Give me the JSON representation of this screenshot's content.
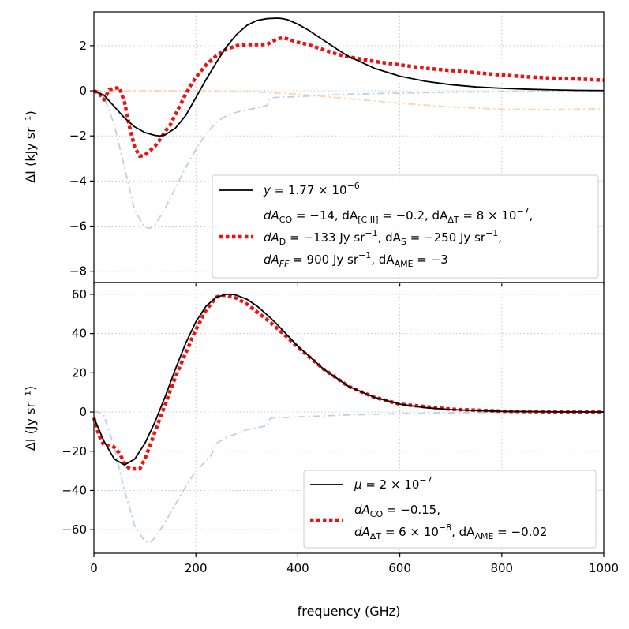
{
  "chart_data": [
    {
      "type": "line",
      "panel": "top",
      "xlabel": "",
      "ylabel": "ΔI (kJy sr⁻¹)",
      "xlim": [
        0,
        1000
      ],
      "ylim": [
        -8.5,
        3.5
      ],
      "yticks": [
        2,
        0,
        -2,
        -4,
        -6,
        -8
      ],
      "ytick_labels": [
        "2",
        "0",
        "−2",
        "−4",
        "−6",
        "−8"
      ],
      "grid": true,
      "legend_position": "lower-right",
      "series": [
        {
          "name": "y = 1.77 × 10⁻⁶",
          "style": "solid",
          "color": "#000000",
          "x": [
            0,
            20,
            40,
            60,
            80,
            100,
            120,
            130,
            140,
            160,
            180,
            200,
            220,
            240,
            260,
            280,
            300,
            320,
            340,
            360,
            370,
            380,
            400,
            420,
            440,
            460,
            480,
            500,
            550,
            600,
            650,
            700,
            750,
            800,
            850,
            900,
            950,
            1000
          ],
          "y": [
            0,
            -0.2,
            -0.7,
            -1.2,
            -1.6,
            -1.85,
            -1.98,
            -2.0,
            -1.95,
            -1.65,
            -1.1,
            -0.3,
            0.5,
            1.25,
            1.95,
            2.5,
            2.9,
            3.12,
            3.2,
            3.22,
            3.2,
            3.15,
            2.95,
            2.7,
            2.4,
            2.1,
            1.8,
            1.52,
            1.0,
            0.65,
            0.42,
            0.27,
            0.17,
            0.11,
            0.07,
            0.04,
            0.02,
            0.01
          ]
        },
        {
          "name": "dA_CO = −14, dA_[C II] = −0.2, dA_ΔT = 8 × 10⁻⁷, dA_D = −133 Jy sr⁻¹, dA_S = −250 Jy sr⁻¹, dA_FF = 900 Jy sr⁻¹, dA_AME = −3",
          "style": "dotted",
          "color": "#ee1111",
          "x": [
            0,
            10,
            20,
            30,
            40,
            50,
            60,
            70,
            80,
            90,
            100,
            110,
            120,
            130,
            140,
            150,
            160,
            170,
            180,
            190,
            200,
            220,
            240,
            260,
            280,
            300,
            320,
            340,
            350,
            360,
            370,
            380,
            400,
            420,
            440,
            460,
            480,
            500,
            550,
            600,
            650,
            700,
            750,
            800,
            850,
            900,
            950,
            1000
          ],
          "y": [
            0,
            -0.1,
            -0.4,
            0.05,
            0.1,
            0.15,
            -0.5,
            -1.6,
            -2.5,
            -2.9,
            -2.85,
            -2.65,
            -2.45,
            -2.15,
            -1.8,
            -1.5,
            -1.05,
            -0.6,
            -0.15,
            0.25,
            0.6,
            1.15,
            1.55,
            1.85,
            2.0,
            2.05,
            2.05,
            2.05,
            2.2,
            2.3,
            2.35,
            2.3,
            2.15,
            2.05,
            1.9,
            1.75,
            1.6,
            1.5,
            1.3,
            1.15,
            1.0,
            0.9,
            0.8,
            0.7,
            0.62,
            0.56,
            0.52,
            0.47
          ]
        },
        {
          "name": "",
          "style": "dashdot",
          "color": "#b8d2e6",
          "x": [
            0,
            20,
            40,
            60,
            80,
            100,
            110,
            120,
            140,
            160,
            180,
            200,
            220,
            240,
            260,
            280,
            300,
            320,
            340,
            345,
            350,
            400,
            450,
            500,
            600,
            700,
            800,
            900,
            1000
          ],
          "y": [
            0,
            -0.3,
            -1.5,
            -3.4,
            -5.3,
            -6.05,
            -6.1,
            -5.95,
            -5.2,
            -4.3,
            -3.4,
            -2.6,
            -1.9,
            -1.4,
            -1.1,
            -0.95,
            -0.85,
            -0.75,
            -0.65,
            -0.35,
            -0.3,
            -0.26,
            -0.2,
            -0.15,
            -0.1,
            -0.06,
            -0.04,
            -0.02,
            -0.01
          ]
        },
        {
          "name": "",
          "style": "dashdot",
          "color": "#fcd5b0",
          "x": [
            0,
            100,
            200,
            300,
            400,
            500,
            600,
            700,
            800,
            900,
            1000
          ],
          "y": [
            0,
            0,
            0,
            -0.03,
            -0.15,
            -0.35,
            -0.55,
            -0.72,
            -0.82,
            -0.83,
            -0.8
          ]
        }
      ]
    },
    {
      "type": "line",
      "panel": "bottom",
      "xlabel": "frequency (GHz)",
      "ylabel": "ΔI (Jy sr⁻¹)",
      "xlim": [
        0,
        1000
      ],
      "ylim": [
        -72,
        66
      ],
      "xticks": [
        0,
        200,
        400,
        600,
        800,
        1000
      ],
      "xtick_labels": [
        "0",
        "200",
        "400",
        "600",
        "800",
        "1000"
      ],
      "yticks": [
        60,
        40,
        20,
        0,
        -20,
        -40,
        -60
      ],
      "ytick_labels": [
        "60",
        "40",
        "20",
        "0",
        "−20",
        "−40",
        "−60"
      ],
      "grid": true,
      "legend_position": "lower-right",
      "series": [
        {
          "name": "μ = 2 × 10⁻⁷",
          "style": "solid",
          "color": "#000000",
          "x": [
            0,
            20,
            40,
            60,
            80,
            100,
            120,
            140,
            160,
            180,
            200,
            220,
            240,
            260,
            270,
            280,
            300,
            320,
            340,
            360,
            380,
            400,
            450,
            500,
            550,
            600,
            650,
            700,
            800,
            900,
            1000
          ],
          "y": [
            -3,
            -15,
            -24,
            -27,
            -24,
            -16,
            -5,
            8,
            22,
            35,
            46,
            54,
            58.5,
            60,
            60,
            59.5,
            57.5,
            54,
            49.5,
            44.5,
            39,
            33.5,
            22,
            13,
            7.5,
            4,
            2.2,
            1.2,
            0.3,
            0.1,
            0
          ]
        },
        {
          "name": "dA_CO = −0.15, dA_ΔT = 6 × 10⁻⁸, dA_AME = −0.02",
          "style": "dotted",
          "color": "#ee1111",
          "x": [
            0,
            10,
            20,
            30,
            40,
            50,
            60,
            70,
            80,
            90,
            100,
            110,
            120,
            130,
            140,
            160,
            180,
            200,
            220,
            240,
            250,
            260,
            280,
            300,
            320,
            340,
            360,
            380,
            400,
            450,
            500,
            550,
            600,
            700,
            800,
            900,
            1000
          ],
          "y": [
            -3,
            -12,
            -17,
            -17,
            -18,
            -21,
            -26,
            -29,
            -29,
            -29,
            -24,
            -17,
            -10,
            -3,
            4,
            18,
            30,
            42,
            52,
            58.5,
            59.5,
            59.5,
            58,
            55,
            51,
            47,
            42.5,
            38,
            33,
            22,
            13,
            7.5,
            4,
            1.4,
            0.4,
            0.1,
            0
          ]
        },
        {
          "name": "",
          "style": "dashdot",
          "color": "#b8d2e6",
          "x": [
            0,
            10,
            20,
            40,
            60,
            80,
            100,
            110,
            120,
            140,
            160,
            180,
            200,
            220,
            230,
            240,
            260,
            280,
            300,
            320,
            340,
            345,
            350,
            400,
            450,
            500,
            600,
            700,
            800,
            900,
            1000
          ],
          "y": [
            0,
            0,
            -2,
            -18,
            -40,
            -58,
            -66,
            -66.5,
            -64,
            -56,
            -47,
            -38,
            -30,
            -25,
            -22,
            -16,
            -13,
            -11,
            -9,
            -8,
            -7,
            -3.5,
            -3,
            -2.5,
            -2,
            -1.5,
            -0.8,
            -0.4,
            -0.2,
            -0.1,
            0
          ]
        }
      ]
    }
  ],
  "legends": {
    "top": {
      "entry1": {
        "prefix": "y",
        "suffix": " = 1.77 × 10",
        "exp": "−6"
      },
      "entry2": {
        "line1": {
          "t1": "dA",
          "s1": "CO",
          "t2": " = −14, dA",
          "s2": "[C II]",
          "t3": " = −0.2, dA",
          "s3": "ΔT",
          "t4": " = 8 × 10",
          "e4": "−7",
          "t5": ","
        },
        "line2": {
          "t1": "dA",
          "s1": "D",
          "t2": " = −133 Jy sr",
          "e2": "−1",
          "t3": ", dA",
          "s3": "S",
          "t4": " = −250 Jy sr",
          "e4": "−1",
          "t5": ","
        },
        "line3": {
          "t1": "dA",
          "s1": "FF",
          "t2": " = 900 Jy sr",
          "e2": "−1",
          "t3": ", dA",
          "s3": "AME",
          "t4": " = −3"
        }
      }
    },
    "bottom": {
      "entry1": {
        "prefix": "μ",
        "suffix": " = 2 × 10",
        "exp": "−7"
      },
      "entry2": {
        "line1": {
          "t1": "dA",
          "s1": "CO",
          "t2": " = −0.15,"
        },
        "line2": {
          "t1": "dA",
          "s1": "ΔT",
          "t2": " = 6 × 10",
          "e2": "−8",
          "t3": ", dA",
          "s3": "AME",
          "t4": " = −0.02"
        }
      }
    }
  }
}
